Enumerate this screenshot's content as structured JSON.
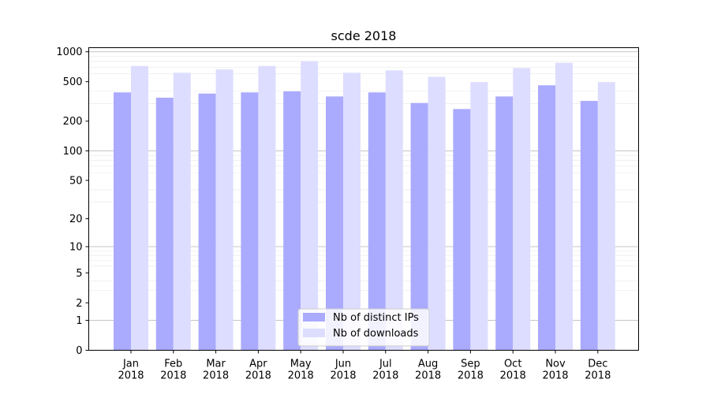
{
  "chart_data": {
    "type": "bar",
    "title": "scde 2018",
    "xlabel": "",
    "ylabel": "",
    "yscale": "symlog",
    "ylim": [
      0,
      1100
    ],
    "y_ticks": [
      0,
      1,
      2,
      5,
      10,
      20,
      50,
      100,
      200,
      500,
      1000
    ],
    "categories": [
      "Jan\n2018",
      "Feb\n2018",
      "Mar\n2018",
      "Apr\n2018",
      "May\n2018",
      "Jun\n2018",
      "Jul\n2018",
      "Aug\n2018",
      "Sep\n2018",
      "Oct\n2018",
      "Nov\n2018",
      "Dec\n2018"
    ],
    "series": [
      {
        "name": "Nb of distinct IPs",
        "color": "#aaaaff",
        "values": [
          390,
          345,
          380,
          390,
          400,
          355,
          390,
          305,
          265,
          355,
          460,
          320
        ]
      },
      {
        "name": "Nb of downloads",
        "color": "#ddddff",
        "values": [
          720,
          615,
          665,
          720,
          805,
          615,
          650,
          560,
          495,
          685,
          775,
          495
        ]
      }
    ],
    "grid": true,
    "legend_position": "lower-center"
  }
}
